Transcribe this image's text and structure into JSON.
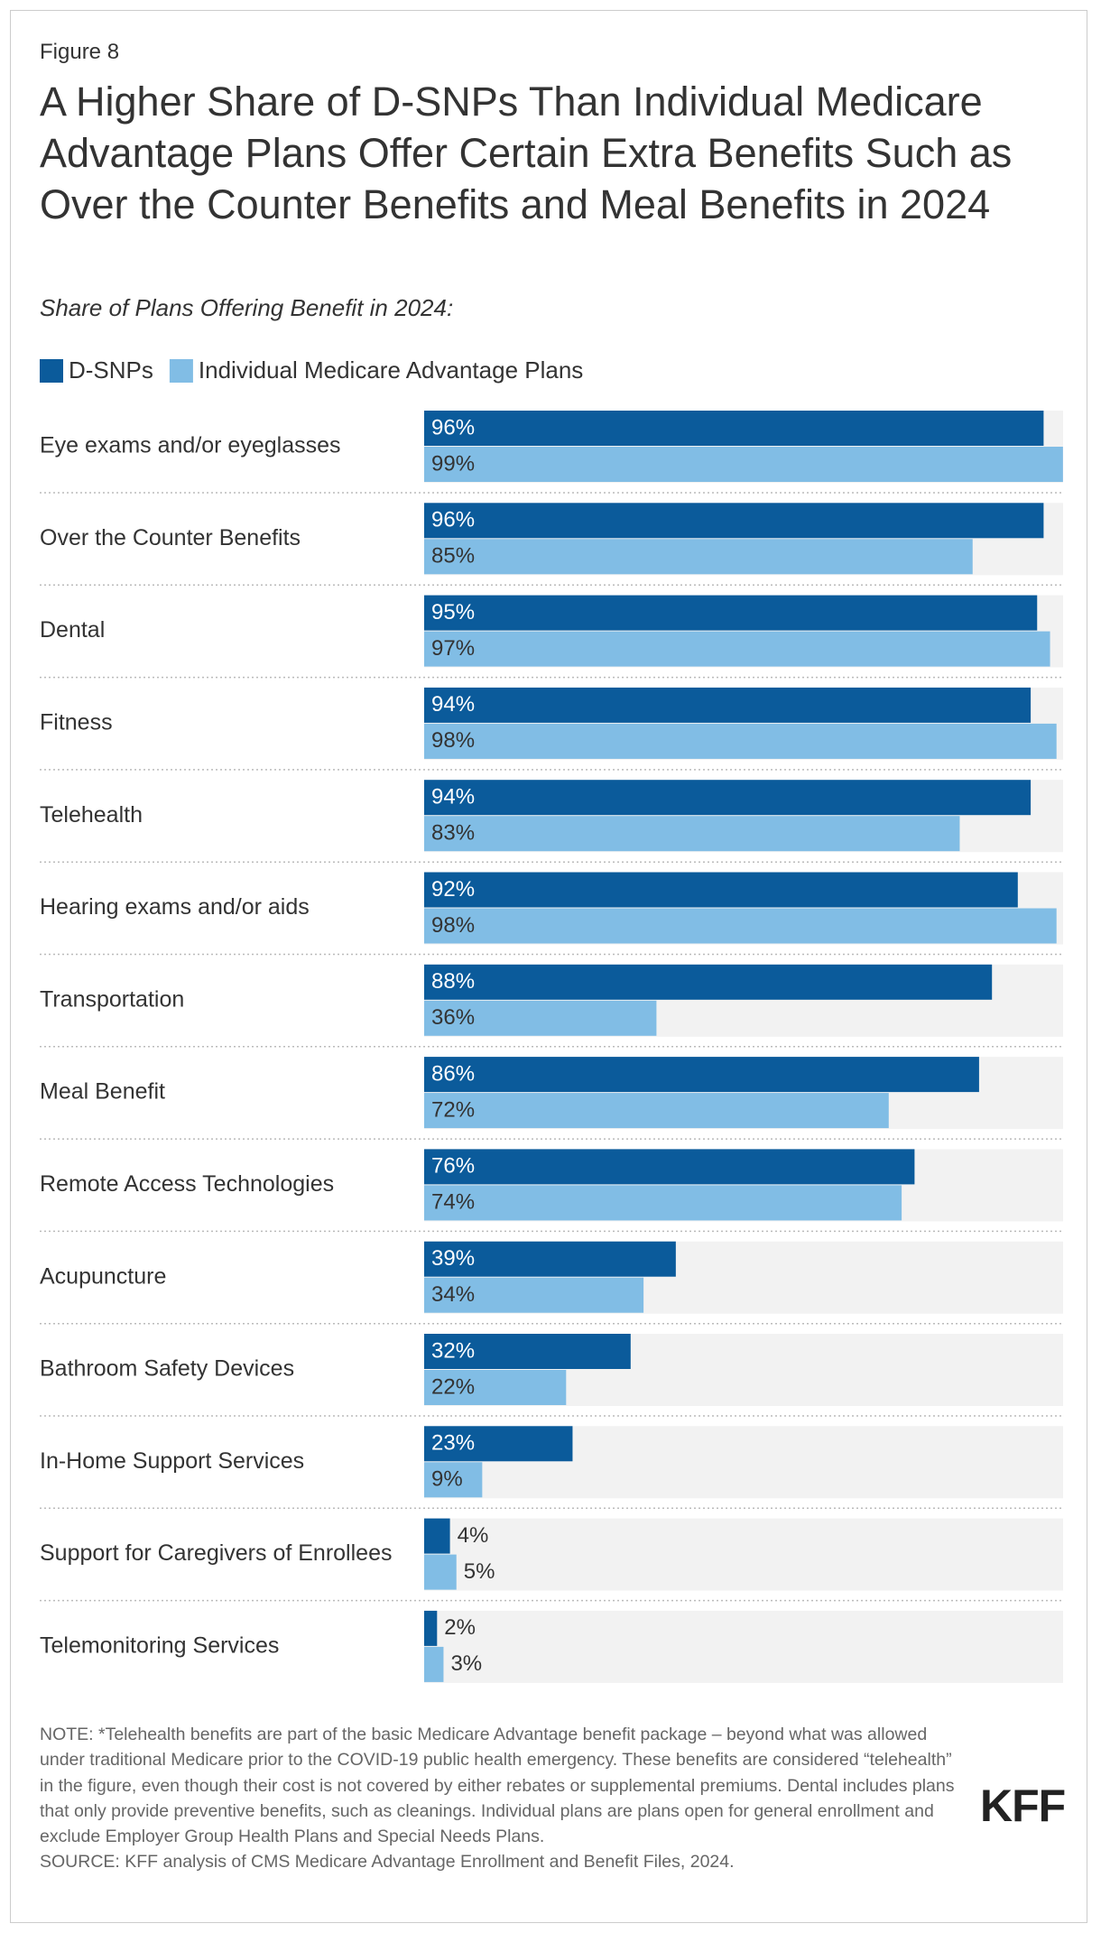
{
  "figure_label": "Figure 8",
  "chart_data": {
    "type": "bar",
    "orientation": "horizontal",
    "title": "A Higher Share of D-SNPs Than Individual Medicare Advantage Plans Offer Certain Extra Benefits Such as Over the Counter Benefits and Meal Benefits in 2024",
    "subtitle": "Share of Plans Offering Benefit in 2024:",
    "categories": [
      "Eye exams and/or eyeglasses",
      "Over the Counter Benefits",
      "Dental",
      "Fitness",
      "Telehealth",
      "Hearing exams and/or aids",
      "Transportation",
      "Meal Benefit",
      "Remote Access Technologies",
      "Acupuncture",
      "Bathroom Safety Devices",
      "In-Home Support Services",
      "Support for Caregivers of Enrollees",
      "Telemonitoring Services"
    ],
    "series": [
      {
        "name": "D-SNPs",
        "color": "#0b5b9b",
        "values": [
          96,
          96,
          95,
          94,
          94,
          92,
          88,
          86,
          76,
          39,
          32,
          23,
          4,
          2
        ],
        "value_labels": [
          "96%",
          "96%",
          "95%",
          "94%",
          "94%",
          "92%",
          "88%",
          "86%",
          "76%",
          "39%",
          "32%",
          "23%",
          "4%",
          "2%"
        ]
      },
      {
        "name": "Individual Medicare Advantage Plans",
        "color": "#81bde5",
        "values": [
          99,
          85,
          97,
          98,
          83,
          98,
          36,
          72,
          74,
          34,
          22,
          9,
          5,
          3
        ],
        "value_labels": [
          "99%",
          "85%",
          "97%",
          "98%",
          "83%",
          "98%",
          "36%",
          "72%",
          "74%",
          "34%",
          "22%",
          "9%",
          "5%",
          "3%"
        ]
      }
    ],
    "xlim": [
      0,
      100
    ],
    "note": "NOTE: *Telehealth benefits are part of the basic Medicare Advantage benefit package – beyond what was allowed under traditional Medicare prior to the COVID-19 public health emergency. These benefits are considered “telehealth” in the figure, even though their cost is not covered by either rebates or supplemental premiums. Dental includes plans that only provide preventive benefits, such as cleanings. Individual plans are plans open for general enrollment and exclude Employer Group Health Plans and Special Needs Plans.",
    "source": "SOURCE: KFF analysis of CMS Medicare Advantage Enrollment and Benefit Files, 2024."
  },
  "logo": "KFF"
}
